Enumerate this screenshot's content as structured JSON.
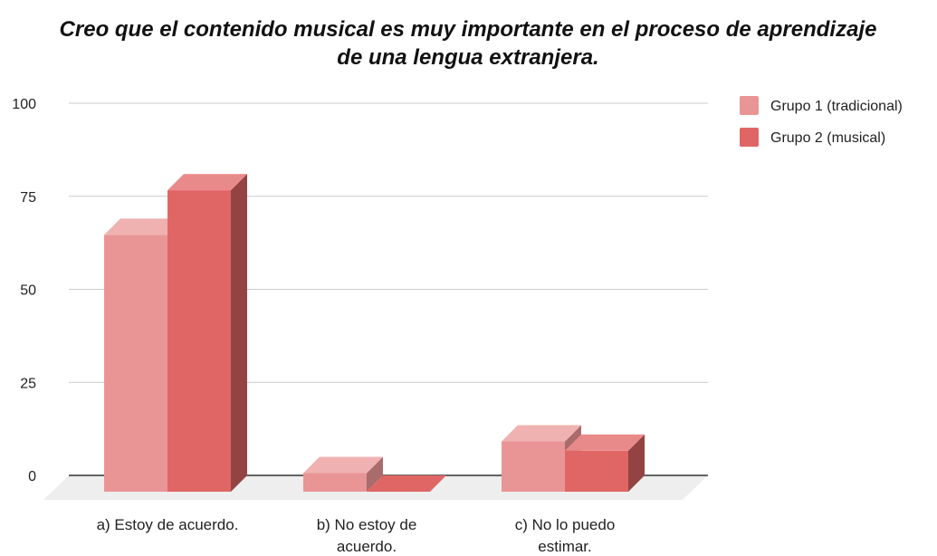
{
  "chart_data": {
    "type": "bar",
    "title_lines": [
      "Creo que el contenido musical es muy importante en el proceso de aprendizaje",
      "de una lengua extranjera."
    ],
    "categories": [
      [
        "a) Estoy de acuerdo."
      ],
      [
        "b) No estoy de",
        "acuerdo."
      ],
      [
        "c) No lo puedo",
        "estimar."
      ]
    ],
    "series": [
      {
        "name": "Grupo 1 (tradicional)",
        "values": [
          69,
          5,
          13.5
        ]
      },
      {
        "name": "Grupo 2 (musical)",
        "values": [
          81,
          0,
          11
        ]
      }
    ],
    "ylim": [
      0,
      100
    ],
    "yticks": [
      0,
      25,
      50,
      75,
      100
    ],
    "grid": true,
    "legend_position": "right",
    "style": "3d",
    "colors": {
      "series": [
        {
          "front": "#e99595",
          "top": "#f0b1b1",
          "side": "#a96b6b"
        },
        {
          "front": "#e06666",
          "top": "#e98a8a",
          "side": "#944343"
        }
      ],
      "floor": "#eeeeee",
      "grid": "#cccccc",
      "axis": "#333333"
    }
  }
}
